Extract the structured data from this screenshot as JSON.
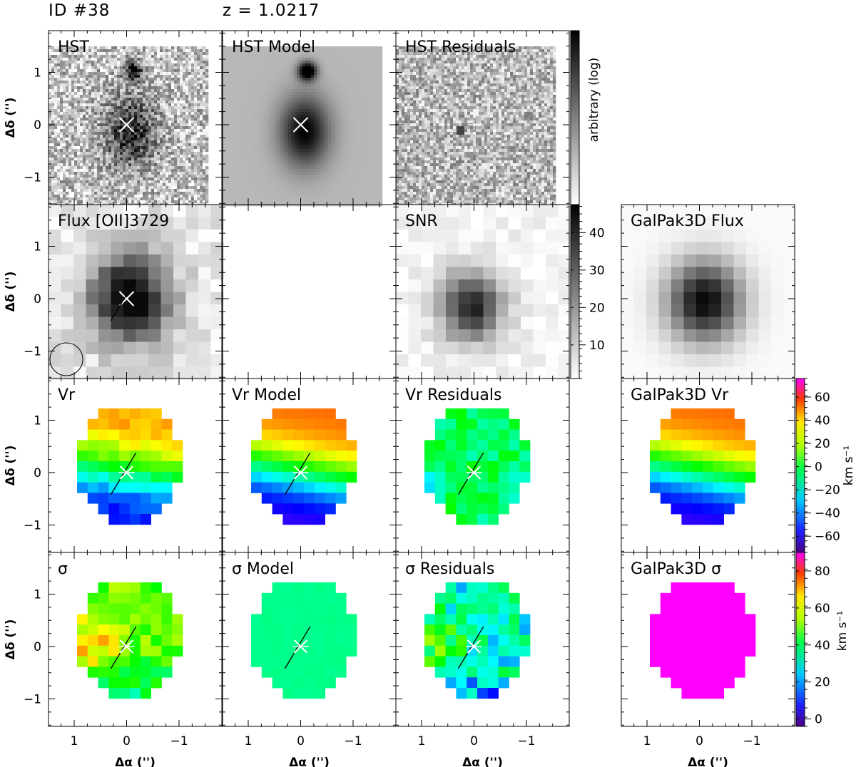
{
  "header": {
    "id": "ID #38",
    "redshift": "z = 1.0217"
  },
  "axes": {
    "x_label": "Δα ('')",
    "y_label": "Δδ ('')",
    "x_ticks": [
      "1",
      "0",
      "−1"
    ],
    "y_ticks": [
      "1",
      "0",
      "−1"
    ]
  },
  "panels": {
    "hst": "HST",
    "hst_model": "HST Model",
    "hst_residuals": "HST Residuals",
    "flux": "Flux [OII]3729",
    "snr": "SNR",
    "galpak_flux": "GalPak3D Flux",
    "vr": "Vr",
    "vr_model": "Vr Model",
    "vr_residuals": "Vr Residuals",
    "galpak_vr": "GalPak3D Vr",
    "sigma": "σ",
    "sigma_model": "σ Model",
    "sigma_residuals": "σ Residuals",
    "galpak_sigma": "GalPak3D σ"
  },
  "colorbars": {
    "hst": {
      "label": "arbitrary (log)",
      "ticks": []
    },
    "snr": {
      "label": "",
      "ticks": [
        "10",
        "20",
        "30",
        "40"
      ]
    },
    "vr": {
      "label": "km s⁻¹",
      "ticks": [
        "60",
        "40",
        "20",
        "0",
        "−20",
        "−40",
        "−60"
      ]
    },
    "sigma": {
      "label": "km s⁻¹",
      "ticks": [
        "80",
        "60",
        "40",
        "20",
        "0"
      ]
    }
  },
  "colors": {
    "map_max": "#ff00ff",
    "map_min": "#4b0082"
  }
}
